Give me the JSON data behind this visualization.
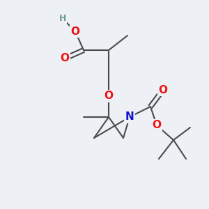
{
  "bg_color": "#edf1f5",
  "bond_color": "#4a4a4a",
  "atom_colors": {
    "O": "#ee1111",
    "N": "#1111cc",
    "H": "#6a9a9a",
    "C": "#4a4a4a"
  },
  "bond_width": 1.5,
  "font_size_atom": 11,
  "font_size_small": 9
}
